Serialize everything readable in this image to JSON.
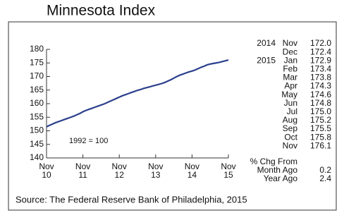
{
  "chart_data": {
    "type": "line",
    "title": "Minnesota Index",
    "annotation": "1992 = 100",
    "x": [
      "2010-11",
      "2010-12",
      "2011-01",
      "2011-02",
      "2011-03",
      "2011-04",
      "2011-05",
      "2011-06",
      "2011-07",
      "2011-08",
      "2011-09",
      "2011-10",
      "2011-11",
      "2011-12",
      "2012-01",
      "2012-02",
      "2012-03",
      "2012-04",
      "2012-05",
      "2012-06",
      "2012-07",
      "2012-08",
      "2012-09",
      "2012-10",
      "2012-11",
      "2012-12",
      "2013-01",
      "2013-02",
      "2013-03",
      "2013-04",
      "2013-05",
      "2013-06",
      "2013-07",
      "2013-08",
      "2013-09",
      "2013-10",
      "2013-11",
      "2013-12",
      "2014-01",
      "2014-02",
      "2014-03",
      "2014-04",
      "2014-05",
      "2014-06",
      "2014-07",
      "2014-08",
      "2014-09",
      "2014-10",
      "2014-11",
      "2014-12",
      "2015-01",
      "2015-02",
      "2015-03",
      "2015-04",
      "2015-05",
      "2015-06",
      "2015-07",
      "2015-08",
      "2015-09",
      "2015-10",
      "2015-11"
    ],
    "series": [
      {
        "name": "Minnesota Index",
        "color": "#2b3f8c",
        "values": [
          151.5,
          152.0,
          152.5,
          153.0,
          153.4,
          153.8,
          154.2,
          154.6,
          155.0,
          155.4,
          155.9,
          156.4,
          157.0,
          157.5,
          157.9,
          158.3,
          158.7,
          159.1,
          159.5,
          159.9,
          160.4,
          160.9,
          161.4,
          161.9,
          162.4,
          162.9,
          163.3,
          163.7,
          164.1,
          164.5,
          164.9,
          165.2,
          165.6,
          165.9,
          166.2,
          166.5,
          166.8,
          167.1,
          167.4,
          167.8,
          168.3,
          168.8,
          169.4,
          170.0,
          170.5,
          170.9,
          171.3,
          171.7,
          172.0,
          172.4,
          172.9,
          173.4,
          173.8,
          174.3,
          174.6,
          174.8,
          175.0,
          175.2,
          175.5,
          175.8,
          176.1
        ]
      }
    ],
    "ylim": [
      140,
      180
    ],
    "yticks": [
      140,
      145,
      150,
      155,
      160,
      165,
      170,
      175,
      180
    ],
    "xticks": [
      {
        "value": "2010-11",
        "label": [
          "Nov",
          "10"
        ]
      },
      {
        "value": "2011-11",
        "label": [
          "Nov",
          "11"
        ]
      },
      {
        "value": "2012-11",
        "label": [
          "Nov",
          "12"
        ]
      },
      {
        "value": "2013-11",
        "label": [
          "Nov",
          "13"
        ]
      },
      {
        "value": "2014-11",
        "label": [
          "Nov",
          "14"
        ]
      },
      {
        "value": "2015-11",
        "label": [
          "Nov",
          "15"
        ]
      }
    ]
  },
  "side_table": {
    "rows": [
      {
        "year": "2014",
        "month": "Nov",
        "value": "172.0"
      },
      {
        "month": "Dec",
        "value": "172.4"
      },
      {
        "year": "2015",
        "month": "Jan",
        "value": "172.9"
      },
      {
        "month": "Feb",
        "value": "173.4"
      },
      {
        "month": "Mar",
        "value": "173.8"
      },
      {
        "month": "Apr",
        "value": "174.3"
      },
      {
        "month": "May",
        "value": "174.6"
      },
      {
        "month": "Jun",
        "value": "174.8"
      },
      {
        "month": "Jul",
        "value": "175.0"
      },
      {
        "month": "Aug",
        "value": "175.2"
      },
      {
        "month": "Sep",
        "value": "175.5"
      },
      {
        "month": "Oct",
        "value": "175.8"
      },
      {
        "month": "Nov",
        "value": "176.1"
      }
    ]
  },
  "change": {
    "title": "% Chg From",
    "rows": [
      {
        "label": "Month Ago",
        "value": "0.2"
      },
      {
        "label": "Year Ago",
        "value": "2.4"
      }
    ]
  },
  "source": "Source:  The Federal Reserve Bank of Philadelphia, 2015"
}
